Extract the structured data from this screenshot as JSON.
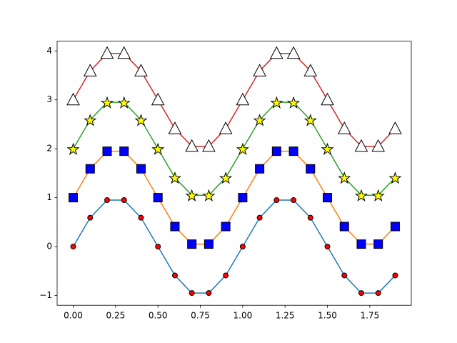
{
  "chart_data": {
    "type": "line",
    "x": [
      0,
      0.1,
      0.2,
      0.3,
      0.4,
      0.5,
      0.6,
      0.7,
      0.8,
      0.9,
      1.0,
      1.1,
      1.2,
      1.3,
      1.4,
      1.5,
      1.6,
      1.7,
      1.8,
      1.9
    ],
    "series": [
      {
        "color": "#1f77b4",
        "marker": "circle",
        "marker_color": "#ff0000",
        "values": [
          0,
          0.59,
          0.95,
          0.95,
          0.59,
          0,
          -0.59,
          -0.95,
          -0.95,
          -0.59,
          0,
          0.59,
          0.95,
          0.95,
          0.59,
          0,
          -0.59,
          -0.95,
          -0.95,
          -0.59
        ]
      },
      {
        "color": "#ff7f0e",
        "marker": "square",
        "marker_color": "#0000ff",
        "values": [
          1,
          1.59,
          1.95,
          1.95,
          1.59,
          1,
          0.41,
          0.05,
          0.05,
          0.41,
          1,
          1.59,
          1.95,
          1.95,
          1.59,
          1,
          0.41,
          0.05,
          0.05,
          0.41
        ]
      },
      {
        "color": "#2ca02c",
        "marker": "star",
        "marker_color": "#ffff00",
        "values": [
          2,
          2.59,
          2.95,
          2.95,
          2.59,
          2,
          1.41,
          1.05,
          1.05,
          1.41,
          2,
          2.59,
          2.95,
          2.95,
          2.59,
          2,
          1.41,
          1.05,
          1.05,
          1.41
        ]
      },
      {
        "color": "#d62728",
        "marker": "triangle",
        "marker_color": "#ffffff",
        "values": [
          3,
          3.59,
          3.95,
          3.95,
          3.59,
          3,
          2.41,
          2.05,
          2.05,
          2.41,
          3,
          3.59,
          3.95,
          3.95,
          3.59,
          3,
          2.41,
          2.05,
          2.05,
          2.41
        ]
      }
    ],
    "xlim": [
      -0.095,
      1.995
    ],
    "ylim": [
      -1.2,
      4.2
    ],
    "xticks": [
      {
        "value": 0,
        "label": "0.00"
      },
      {
        "value": 0.25,
        "label": "0.25"
      },
      {
        "value": 0.5,
        "label": "0.50"
      },
      {
        "value": 0.75,
        "label": "0.75"
      },
      {
        "value": 1,
        "label": "1.00"
      },
      {
        "value": 1.25,
        "label": "1.25"
      },
      {
        "value": 1.5,
        "label": "1.50"
      },
      {
        "value": 1.75,
        "label": "1.75"
      }
    ],
    "yticks": [
      {
        "value": -1,
        "label": "−1"
      },
      0,
      1,
      2,
      3,
      4
    ],
    "grid": false
  }
}
